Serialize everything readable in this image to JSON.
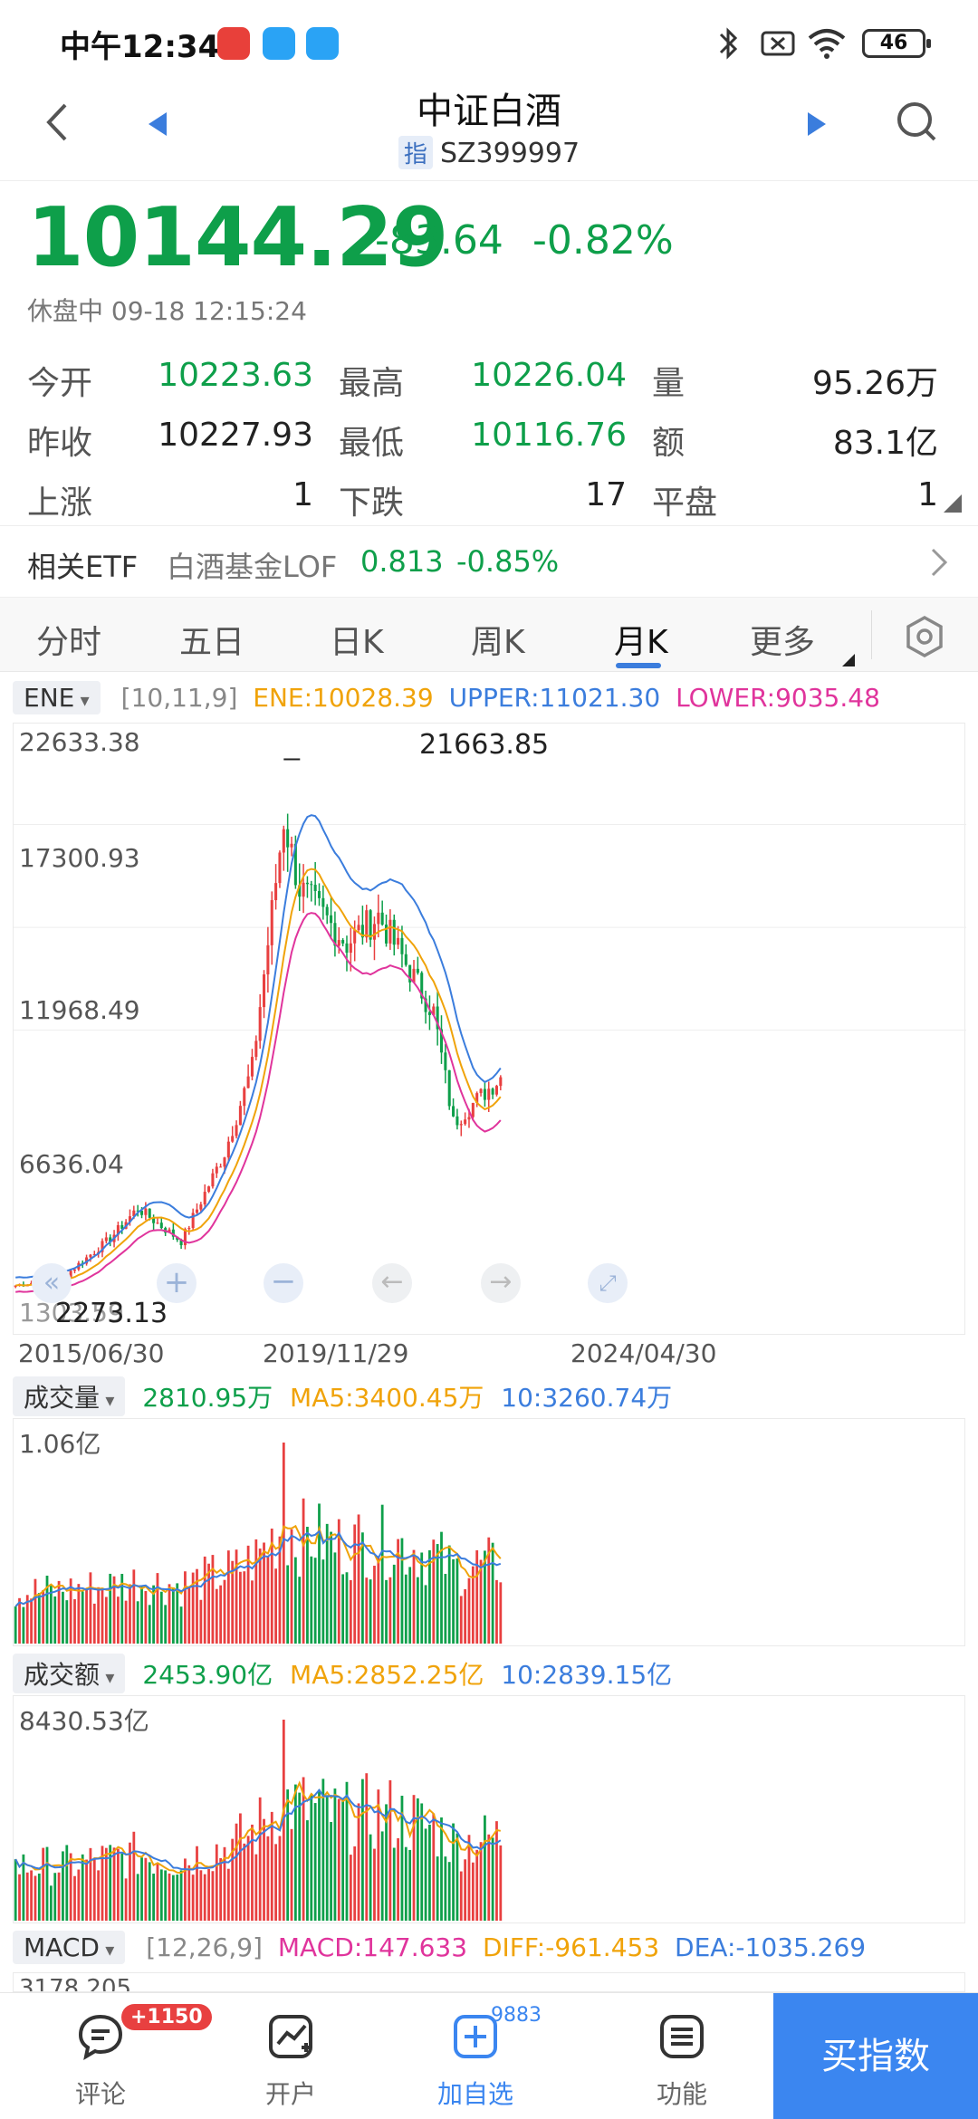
{
  "status_bar": {
    "time": "中午12:34",
    "battery": "46"
  },
  "header": {
    "title": "中证白酒",
    "tag": "指",
    "code": "SZ399997"
  },
  "quote": {
    "price": "10144.29",
    "change": "-83.64",
    "change_pct": "-0.82%",
    "trade_time": "休盘中 09-18 12:15:24"
  },
  "stats": {
    "open_label": "今开",
    "open": "10223.63",
    "high_label": "最高",
    "high": "10226.04",
    "vol_label": "量",
    "vol": "95.26万",
    "prev_label": "昨收",
    "prev": "10227.93",
    "low_label": "最低",
    "low": "10116.76",
    "amt_label": "额",
    "amt": "83.1亿",
    "up_label": "上涨",
    "up": "1",
    "down_label": "下跌",
    "down": "17",
    "flat_label": "平盘",
    "flat": "1"
  },
  "etf": {
    "label": "相关ETF",
    "name": "白酒基金LOF",
    "price": "0.813",
    "pct": "-0.85%"
  },
  "tabs": [
    "分时",
    "五日",
    "日K",
    "周K",
    "月K",
    "更多"
  ],
  "active_tab": 4,
  "ene": {
    "name": "ENE",
    "params": "[10,11,9]",
    "ene": "ENE:10028.39",
    "upper": "UPPER:11021.30",
    "lower": "LOWER:9035.48"
  },
  "kline": {
    "y_labels": [
      "22633.38",
      "17300.93",
      "11968.49",
      "6636.04"
    ],
    "y_low_label": "1303.59",
    "max_label": "21663.85",
    "min_label": "2273.13",
    "x_labels": [
      "2015/06/30",
      "2019/11/29",
      "2024/04/30"
    ]
  },
  "volume": {
    "name": "成交量",
    "value": "2810.95万",
    "ma5": "MA5:3400.45万",
    "ma10": "10:3260.74万",
    "max_label": "1.06亿"
  },
  "amount": {
    "name": "成交额",
    "value": "2453.90亿",
    "ma5": "MA5:2852.25亿",
    "ma10": "10:2839.15亿",
    "max_label": "8430.53亿"
  },
  "macd": {
    "name": "MACD",
    "params": "[12,26,9]",
    "macd": "MACD:147.633",
    "diff": "DIFF:-961.453",
    "dea": "DEA:-1035.269",
    "max_label": "3178.205"
  },
  "bottom_nav": {
    "comment": "评论",
    "comment_badge": "+1150",
    "account": "开户",
    "watch": "加自选",
    "watch_count": "9883",
    "func": "功能",
    "buy": "买指数"
  },
  "colors": {
    "down": "#0e9f4a",
    "up": "#e84040",
    "ene": "#f0a30a",
    "upper": "#3b7ddd",
    "lower": "#e0349c",
    "accent": "#3b86f0"
  },
  "chart_data": {
    "type": "candlestick",
    "period": "monthly",
    "x_range": [
      "2015/06",
      "2025/09"
    ],
    "ylim": [
      1303.59,
      22633.38
    ],
    "max": 21663.85,
    "min": 2273.13,
    "last": 10144.29,
    "trend_points": [
      {
        "x": "2015/06",
        "close": 2600
      },
      {
        "x": "2016/06",
        "close": 2900
      },
      {
        "x": "2017/06",
        "close": 4300
      },
      {
        "x": "2018/01",
        "close": 5400
      },
      {
        "x": "2018/12",
        "close": 4200
      },
      {
        "x": "2019/11",
        "close": 7400
      },
      {
        "x": "2020/06",
        "close": 10500
      },
      {
        "x": "2021/02",
        "close": 19500
      },
      {
        "x": "2021/06",
        "close": 17000
      },
      {
        "x": "2022/06",
        "close": 15000
      },
      {
        "x": "2023/02",
        "close": 16000
      },
      {
        "x": "2024/04",
        "close": 12500
      },
      {
        "x": "2024/09",
        "close": 8500
      },
      {
        "x": "2025/09",
        "close": 10144.29
      }
    ]
  }
}
